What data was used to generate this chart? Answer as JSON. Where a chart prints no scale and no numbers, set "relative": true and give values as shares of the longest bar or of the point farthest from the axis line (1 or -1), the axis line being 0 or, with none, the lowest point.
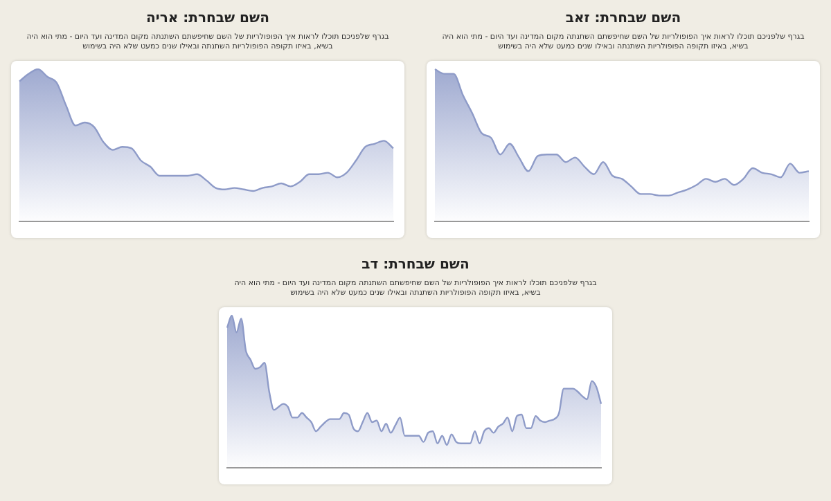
{
  "chart_data": [
    {
      "type": "area",
      "title": "השם שבחרת: אריה",
      "subtitle": "בגרף שלפניכם תוכלו לראות איך הפופולריות של השם שחיפשתם השתנתה מקום המדינה ועד היום - מתי הוא היה בשיא, באיזו תקופה הפופולריות השתנתה ובאילו שנים כמעט שלא היה בשימוש",
      "relative": true,
      "color": "#8e9bc8",
      "categories": [
        null,
        null,
        null,
        null,
        null,
        null,
        null,
        null,
        null,
        null,
        null,
        null,
        null,
        null,
        null,
        null,
        null,
        null,
        null,
        null,
        null,
        null,
        null,
        null,
        null,
        null,
        null,
        null,
        null,
        null,
        null,
        null,
        null,
        null,
        null,
        null,
        null,
        null,
        null,
        null,
        null
      ],
      "values": [
        0.92,
        0.97,
        1.0,
        0.95,
        0.91,
        0.76,
        0.63,
        0.65,
        0.62,
        0.52,
        0.47,
        0.49,
        0.48,
        0.4,
        0.36,
        0.3,
        0.3,
        0.3,
        0.3,
        0.31,
        0.27,
        0.22,
        0.21,
        0.22,
        0.21,
        0.2,
        0.22,
        0.23,
        0.25,
        0.23,
        0.26,
        0.31,
        0.31,
        0.32,
        0.29,
        0.32,
        0.4,
        0.49,
        0.51,
        0.53,
        0.48
      ]
    },
    {
      "type": "area",
      "title": "השם שבחרת: זאב",
      "subtitle": "בגרף שלפניכם תוכלו לראות איך הפופולריות של השם שחיפשתם השתנתה מקום המדינה ועד היום - מתי הוא היה בשיא, באיזו תקופה הפופולריות השתנתה ובאילו שנים כמעט שלא היה בשימוש",
      "relative": true,
      "color": "#8e9bc8",
      "categories": [
        null,
        null,
        null,
        null,
        null,
        null,
        null,
        null,
        null,
        null,
        null,
        null,
        null,
        null,
        null,
        null,
        null,
        null,
        null,
        null,
        null,
        null,
        null,
        null,
        null,
        null,
        null,
        null,
        null,
        null,
        null,
        null,
        null,
        null,
        null,
        null,
        null,
        null,
        null,
        null,
        null
      ],
      "values": [
        1.0,
        0.97,
        0.97,
        0.83,
        0.71,
        0.58,
        0.55,
        0.44,
        0.51,
        0.42,
        0.33,
        0.43,
        0.44,
        0.44,
        0.39,
        0.42,
        0.36,
        0.31,
        0.39,
        0.3,
        0.28,
        0.23,
        0.18,
        0.18,
        0.17,
        0.17,
        0.19,
        0.21,
        0.24,
        0.28,
        0.26,
        0.28,
        0.24,
        0.28,
        0.35,
        0.32,
        0.31,
        0.29,
        0.38,
        0.32,
        0.33
      ]
    },
    {
      "type": "area",
      "title": "השם שבחרת: דב",
      "subtitle": "בגרף שלפניכם תוכלו לראות איך הפופולריות של השם שחיפשתם השתנתה מקום המדינה ועד היום - מתי הוא היה בשיא, באיזו תקופה הפופולריות השתנתה ובאילו שנים כמעט שלא היה בשימוש",
      "relative": true,
      "color": "#8e9bc8",
      "categories": [
        null,
        null,
        null,
        null,
        null,
        null,
        null,
        null,
        null,
        null,
        null,
        null,
        null,
        null,
        null,
        null,
        null,
        null,
        null,
        null,
        null,
        null,
        null,
        null,
        null,
        null,
        null,
        null,
        null,
        null,
        null,
        null,
        null,
        null,
        null,
        null,
        null,
        null,
        null,
        null,
        null,
        null,
        null,
        null,
        null,
        null,
        null,
        null,
        null,
        null,
        null,
        null,
        null,
        null,
        null,
        null,
        null,
        null,
        null,
        null,
        null,
        null,
        null,
        null,
        null,
        null,
        null,
        null,
        null,
        null,
        null,
        null,
        null,
        null,
        null,
        null,
        null,
        null,
        null,
        null,
        null
      ],
      "values": [
        0.92,
        1.0,
        0.89,
        0.98,
        0.77,
        0.71,
        0.65,
        0.66,
        0.69,
        0.5,
        0.38,
        0.4,
        0.42,
        0.4,
        0.33,
        0.33,
        0.36,
        0.33,
        0.3,
        0.24,
        0.27,
        0.3,
        0.32,
        0.32,
        0.32,
        0.36,
        0.35,
        0.26,
        0.24,
        0.3,
        0.36,
        0.3,
        0.31,
        0.24,
        0.29,
        0.23,
        0.28,
        0.33,
        0.21,
        0.21,
        0.21,
        0.21,
        0.17,
        0.23,
        0.24,
        0.16,
        0.21,
        0.15,
        0.22,
        0.17,
        0.16,
        0.16,
        0.16,
        0.24,
        0.16,
        0.24,
        0.26,
        0.23,
        0.27,
        0.29,
        0.33,
        0.24,
        0.34,
        0.35,
        0.26,
        0.26,
        0.34,
        0.31,
        0.3,
        0.31,
        0.32,
        0.36,
        0.52,
        0.52,
        0.52,
        0.5,
        0.47,
        0.45,
        0.57,
        0.53,
        0.42
      ]
    }
  ]
}
